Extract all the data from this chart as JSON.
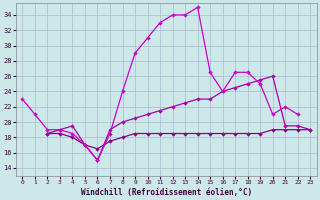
{
  "xlabel": "Windchill (Refroidissement éolien,°C)",
  "xlim": [
    -0.5,
    23.5
  ],
  "ylim": [
    13,
    35.5
  ],
  "yticks": [
    14,
    16,
    18,
    20,
    22,
    24,
    26,
    28,
    30,
    32,
    34
  ],
  "xticks": [
    0,
    1,
    2,
    3,
    4,
    5,
    6,
    7,
    8,
    9,
    10,
    11,
    12,
    13,
    14,
    15,
    16,
    17,
    18,
    19,
    20,
    21,
    22,
    23
  ],
  "background_color": "#cce8e8",
  "grid_color": "#b0b8d8",
  "series1_color": "#cc00cc",
  "series2_color": "#aa00aa",
  "series3_color": "#880088",
  "series1_x": [
    0,
    1,
    2,
    3,
    4,
    5,
    6,
    7,
    8,
    9,
    10,
    11,
    12,
    13,
    14,
    15,
    16,
    17,
    18,
    19,
    20,
    21,
    22
  ],
  "series1_y": [
    23,
    21,
    19,
    19,
    18.5,
    17,
    15,
    18.5,
    24,
    29,
    31,
    33,
    34,
    34,
    35,
    26.5,
    24,
    26.5,
    26.5,
    25,
    21,
    22,
    21
  ],
  "series2_x": [
    2,
    3,
    4,
    5,
    6,
    7,
    8,
    9,
    10,
    11,
    12,
    13,
    14,
    15,
    16,
    17,
    18,
    19,
    20,
    21,
    22,
    23
  ],
  "series2_y": [
    18.5,
    19,
    19.5,
    17,
    15,
    19,
    20,
    20.5,
    21,
    21.5,
    22,
    22.5,
    23,
    23,
    24,
    24.5,
    25,
    25.5,
    26,
    19.5,
    19.5,
    19
  ],
  "series3_x": [
    2,
    3,
    4,
    5,
    6,
    7,
    8,
    9,
    10,
    11,
    12,
    13,
    14,
    15,
    16,
    17,
    18,
    19,
    20,
    21,
    22,
    23
  ],
  "series3_y": [
    18.5,
    18.5,
    18,
    17,
    16.5,
    17.5,
    18,
    18.5,
    18.5,
    18.5,
    18.5,
    18.5,
    18.5,
    18.5,
    18.5,
    18.5,
    18.5,
    18.5,
    19,
    19,
    19,
    19
  ]
}
